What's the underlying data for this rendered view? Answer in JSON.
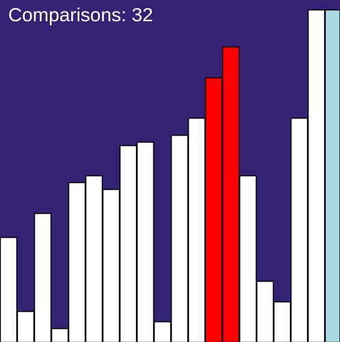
{
  "counter": {
    "label": "Comparisons:",
    "value": "32"
  },
  "colors": {
    "background": "#342375",
    "default_bar": "#ffffff",
    "compared_bar": "#ff0000",
    "sorted_bar": "#add8e6",
    "bar_outline": "#000000"
  },
  "chart_data": {
    "type": "bar",
    "title": "",
    "xlabel": "",
    "ylabel": "",
    "ylim": [
      0,
      100
    ],
    "grid": false,
    "legend": "none",
    "values": [
      31,
      9,
      38,
      4,
      47,
      49,
      45,
      58,
      59,
      6,
      61,
      66,
      78,
      87,
      49,
      18,
      12,
      66,
      98,
      98
    ],
    "states": [
      "default",
      "default",
      "default",
      "default",
      "default",
      "default",
      "default",
      "default",
      "default",
      "default",
      "default",
      "default",
      "compared",
      "compared",
      "default",
      "default",
      "default",
      "default",
      "default",
      "sorted"
    ]
  }
}
